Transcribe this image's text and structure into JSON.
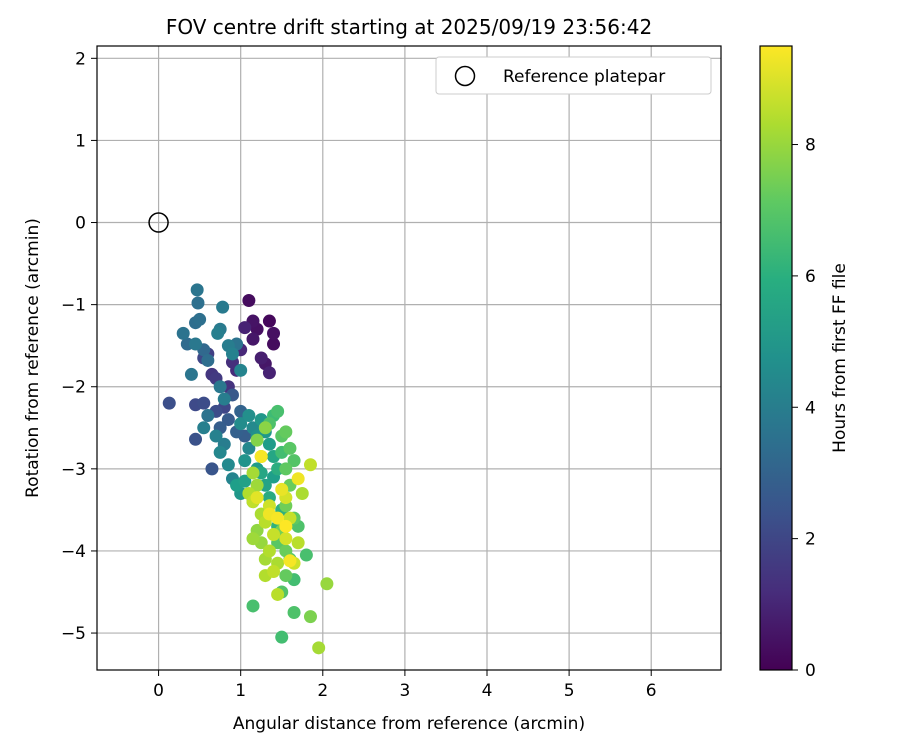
{
  "chart_data": {
    "type": "scatter",
    "title": "FOV centre drift starting at 2025/09/19 23:56:42",
    "xlabel": "Angular distance from reference (arcmin)",
    "ylabel": "Rotation from reference (arcmin)",
    "xlim": [
      -0.75,
      6.85
    ],
    "ylim": [
      -5.45,
      2.15
    ],
    "xticks": [
      0,
      1,
      2,
      3,
      4,
      5,
      6
    ],
    "yticks": [
      -5,
      -4,
      -3,
      -2,
      -1,
      0,
      1,
      2
    ],
    "grid": true,
    "legend": {
      "location": "top-right",
      "entries": [
        {
          "label": "Reference platepar",
          "marker": "open-circle"
        }
      ]
    },
    "reference_point": {
      "x": 0,
      "y": 0
    },
    "colorbar": {
      "label": "Hours from first FF file",
      "min": 0,
      "max": 9.5,
      "ticks": [
        0,
        2,
        4,
        6,
        8
      ],
      "colormap": "viridis"
    },
    "points": [
      {
        "x": 1.1,
        "y": -0.95,
        "c": 0.3
      },
      {
        "x": 1.35,
        "y": -1.2,
        "c": 0.2
      },
      {
        "x": 1.4,
        "y": -1.35,
        "c": 0.4
      },
      {
        "x": 1.4,
        "y": -1.48,
        "c": 0.3
      },
      {
        "x": 1.15,
        "y": -1.2,
        "c": 0.5
      },
      {
        "x": 1.2,
        "y": -1.3,
        "c": 0.4
      },
      {
        "x": 1.15,
        "y": -1.42,
        "c": 0.6
      },
      {
        "x": 1.25,
        "y": -1.65,
        "c": 0.8
      },
      {
        "x": 1.3,
        "y": -1.72,
        "c": 0.6
      },
      {
        "x": 1.35,
        "y": -1.83,
        "c": 0.9
      },
      {
        "x": 1.05,
        "y": -1.28,
        "c": 0.9
      },
      {
        "x": 1.0,
        "y": -1.55,
        "c": 1.1
      },
      {
        "x": 0.9,
        "y": -1.7,
        "c": 1.3
      },
      {
        "x": 0.95,
        "y": -1.8,
        "c": 1.2
      },
      {
        "x": 0.65,
        "y": -1.85,
        "c": 1.5
      },
      {
        "x": 0.7,
        "y": -1.9,
        "c": 1.6
      },
      {
        "x": 0.85,
        "y": -2.0,
        "c": 1.4
      },
      {
        "x": 0.6,
        "y": -1.6,
        "c": 1.8
      },
      {
        "x": 0.55,
        "y": -1.65,
        "c": 2.0
      },
      {
        "x": 0.13,
        "y": -2.2,
        "c": 2.3
      },
      {
        "x": 0.45,
        "y": -2.22,
        "c": 2.1
      },
      {
        "x": 0.55,
        "y": -2.2,
        "c": 2.2
      },
      {
        "x": 0.45,
        "y": -2.64,
        "c": 2.4
      },
      {
        "x": 0.65,
        "y": -3.0,
        "c": 2.5
      },
      {
        "x": 0.7,
        "y": -2.3,
        "c": 2.2
      },
      {
        "x": 0.8,
        "y": -2.25,
        "c": 2.0
      },
      {
        "x": 0.9,
        "y": -2.1,
        "c": 2.6
      },
      {
        "x": 0.85,
        "y": -2.4,
        "c": 2.7
      },
      {
        "x": 0.75,
        "y": -2.5,
        "c": 2.8
      },
      {
        "x": 0.95,
        "y": -2.55,
        "c": 2.9
      },
      {
        "x": 1.0,
        "y": -2.3,
        "c": 3.0
      },
      {
        "x": 1.05,
        "y": -2.6,
        "c": 2.8
      },
      {
        "x": 0.3,
        "y": -1.35,
        "c": 3.6
      },
      {
        "x": 0.45,
        "y": -1.22,
        "c": 3.4
      },
      {
        "x": 0.5,
        "y": -1.18,
        "c": 3.5
      },
      {
        "x": 0.35,
        "y": -1.48,
        "c": 3.3
      },
      {
        "x": 0.4,
        "y": -1.85,
        "c": 3.7
      },
      {
        "x": 0.45,
        "y": -1.48,
        "c": 3.8
      },
      {
        "x": 0.55,
        "y": -1.55,
        "c": 3.2
      },
      {
        "x": 0.6,
        "y": -1.68,
        "c": 3.4
      },
      {
        "x": 0.47,
        "y": -0.82,
        "c": 3.7
      },
      {
        "x": 0.48,
        "y": -0.98,
        "c": 3.5
      },
      {
        "x": 0.78,
        "y": -1.03,
        "c": 3.9
      },
      {
        "x": 0.72,
        "y": -1.35,
        "c": 4.1
      },
      {
        "x": 0.75,
        "y": -1.3,
        "c": 3.9
      },
      {
        "x": 0.85,
        "y": -1.5,
        "c": 4.0
      },
      {
        "x": 0.9,
        "y": -1.6,
        "c": 4.2
      },
      {
        "x": 0.95,
        "y": -1.48,
        "c": 3.6
      },
      {
        "x": 1.0,
        "y": -1.8,
        "c": 4.3
      },
      {
        "x": 0.75,
        "y": -2.0,
        "c": 3.8
      },
      {
        "x": 0.8,
        "y": -2.15,
        "c": 4.0
      },
      {
        "x": 0.6,
        "y": -2.35,
        "c": 3.6
      },
      {
        "x": 0.55,
        "y": -2.5,
        "c": 4.1
      },
      {
        "x": 0.7,
        "y": -2.6,
        "c": 4.2
      },
      {
        "x": 0.75,
        "y": -2.8,
        "c": 4.4
      },
      {
        "x": 0.8,
        "y": -2.7,
        "c": 4.0
      },
      {
        "x": 0.85,
        "y": -2.95,
        "c": 4.5
      },
      {
        "x": 0.9,
        "y": -3.12,
        "c": 4.3
      },
      {
        "x": 1.0,
        "y": -2.45,
        "c": 4.6
      },
      {
        "x": 1.1,
        "y": -2.35,
        "c": 4.7
      },
      {
        "x": 1.15,
        "y": -2.5,
        "c": 4.5
      },
      {
        "x": 1.2,
        "y": -2.6,
        "c": 4.8
      },
      {
        "x": 1.1,
        "y": -2.75,
        "c": 4.4
      },
      {
        "x": 1.05,
        "y": -2.9,
        "c": 4.9
      },
      {
        "x": 1.25,
        "y": -2.4,
        "c": 5.0
      },
      {
        "x": 1.3,
        "y": -2.55,
        "c": 5.1
      },
      {
        "x": 1.35,
        "y": -2.7,
        "c": 5.2
      },
      {
        "x": 1.0,
        "y": -3.3,
        "c": 5.0
      },
      {
        "x": 0.95,
        "y": -3.2,
        "c": 5.3
      },
      {
        "x": 1.2,
        "y": -3.0,
        "c": 5.2
      },
      {
        "x": 1.05,
        "y": -3.15,
        "c": 5.4
      },
      {
        "x": 1.25,
        "y": -3.05,
        "c": 5.6
      },
      {
        "x": 1.3,
        "y": -3.2,
        "c": 5.5
      },
      {
        "x": 1.15,
        "y": -3.4,
        "c": 5.7
      },
      {
        "x": 1.35,
        "y": -3.35,
        "c": 5.8
      },
      {
        "x": 1.4,
        "y": -3.1,
        "c": 5.3
      },
      {
        "x": 1.4,
        "y": -2.85,
        "c": 5.6
      },
      {
        "x": 1.45,
        "y": -3.0,
        "c": 5.9
      },
      {
        "x": 1.5,
        "y": -3.5,
        "c": 6.0
      },
      {
        "x": 1.45,
        "y": -3.7,
        "c": 6.1
      },
      {
        "x": 1.4,
        "y": -2.35,
        "c": 6.5
      },
      {
        "x": 1.45,
        "y": -2.3,
        "c": 6.7
      },
      {
        "x": 1.35,
        "y": -2.45,
        "c": 6.8
      },
      {
        "x": 1.5,
        "y": -2.6,
        "c": 7.0
      },
      {
        "x": 1.55,
        "y": -2.55,
        "c": 7.2
      },
      {
        "x": 1.6,
        "y": -2.75,
        "c": 7.0
      },
      {
        "x": 1.65,
        "y": -2.9,
        "c": 6.9
      },
      {
        "x": 1.5,
        "y": -2.8,
        "c": 6.6
      },
      {
        "x": 1.55,
        "y": -3.0,
        "c": 7.1
      },
      {
        "x": 1.6,
        "y": -3.2,
        "c": 7.3
      },
      {
        "x": 1.65,
        "y": -3.6,
        "c": 7.1
      },
      {
        "x": 1.7,
        "y": -3.7,
        "c": 6.8
      },
      {
        "x": 1.55,
        "y": -3.45,
        "c": 7.4
      },
      {
        "x": 1.5,
        "y": -3.75,
        "c": 7.5
      },
      {
        "x": 1.45,
        "y": -3.9,
        "c": 7.0
      },
      {
        "x": 1.55,
        "y": -4.0,
        "c": 7.3
      },
      {
        "x": 1.6,
        "y": -4.1,
        "c": 6.9
      },
      {
        "x": 1.65,
        "y": -4.35,
        "c": 6.6
      },
      {
        "x": 1.55,
        "y": -4.3,
        "c": 7.2
      },
      {
        "x": 1.5,
        "y": -4.5,
        "c": 6.9
      },
      {
        "x": 1.8,
        "y": -4.05,
        "c": 6.7
      },
      {
        "x": 1.65,
        "y": -4.75,
        "c": 6.8
      },
      {
        "x": 1.5,
        "y": -5.05,
        "c": 6.6
      },
      {
        "x": 1.15,
        "y": -4.67,
        "c": 6.7
      },
      {
        "x": 1.85,
        "y": -4.8,
        "c": 7.6
      },
      {
        "x": 1.95,
        "y": -5.18,
        "c": 8.2
      },
      {
        "x": 2.05,
        "y": -4.4,
        "c": 8.0
      },
      {
        "x": 1.45,
        "y": -4.53,
        "c": 8.5
      },
      {
        "x": 1.3,
        "y": -2.5,
        "c": 7.8
      },
      {
        "x": 1.2,
        "y": -2.65,
        "c": 7.7
      },
      {
        "x": 1.25,
        "y": -2.85,
        "c": 8.0
      },
      {
        "x": 1.15,
        "y": -3.05,
        "c": 8.2
      },
      {
        "x": 1.2,
        "y": -3.2,
        "c": 8.1
      },
      {
        "x": 1.1,
        "y": -3.3,
        "c": 8.4
      },
      {
        "x": 1.15,
        "y": -3.4,
        "c": 8.6
      },
      {
        "x": 1.25,
        "y": -3.55,
        "c": 8.3
      },
      {
        "x": 1.35,
        "y": -3.45,
        "c": 8.8
      },
      {
        "x": 1.3,
        "y": -3.65,
        "c": 8.5
      },
      {
        "x": 1.4,
        "y": -3.8,
        "c": 8.7
      },
      {
        "x": 1.35,
        "y": -4.0,
        "c": 8.4
      },
      {
        "x": 1.3,
        "y": -4.1,
        "c": 8.2
      },
      {
        "x": 1.25,
        "y": -3.9,
        "c": 8.0
      },
      {
        "x": 1.2,
        "y": -3.75,
        "c": 7.9
      },
      {
        "x": 1.15,
        "y": -3.85,
        "c": 8.1
      },
      {
        "x": 1.45,
        "y": -4.15,
        "c": 8.3
      },
      {
        "x": 1.4,
        "y": -4.25,
        "c": 8.6
      },
      {
        "x": 1.3,
        "y": -4.3,
        "c": 8.4
      },
      {
        "x": 1.55,
        "y": -3.85,
        "c": 8.9
      },
      {
        "x": 1.6,
        "y": -3.6,
        "c": 8.7
      },
      {
        "x": 1.7,
        "y": -3.9,
        "c": 8.5
      },
      {
        "x": 1.65,
        "y": -4.15,
        "c": 8.8
      },
      {
        "x": 1.85,
        "y": -2.95,
        "c": 8.6
      },
      {
        "x": 1.75,
        "y": -3.3,
        "c": 8.3
      },
      {
        "x": 1.55,
        "y": -3.35,
        "c": 8.9
      },
      {
        "x": 1.5,
        "y": -3.25,
        "c": 9.2
      },
      {
        "x": 1.25,
        "y": -2.85,
        "c": 9.4
      },
      {
        "x": 1.35,
        "y": -3.55,
        "c": 9.3
      },
      {
        "x": 1.45,
        "y": -3.6,
        "c": 9.4
      },
      {
        "x": 1.55,
        "y": -3.7,
        "c": 9.5
      },
      {
        "x": 1.7,
        "y": -3.12,
        "c": 9.3
      },
      {
        "x": 1.6,
        "y": -4.12,
        "c": 9.4
      },
      {
        "x": 1.2,
        "y": -3.35,
        "c": 9.1
      }
    ]
  }
}
